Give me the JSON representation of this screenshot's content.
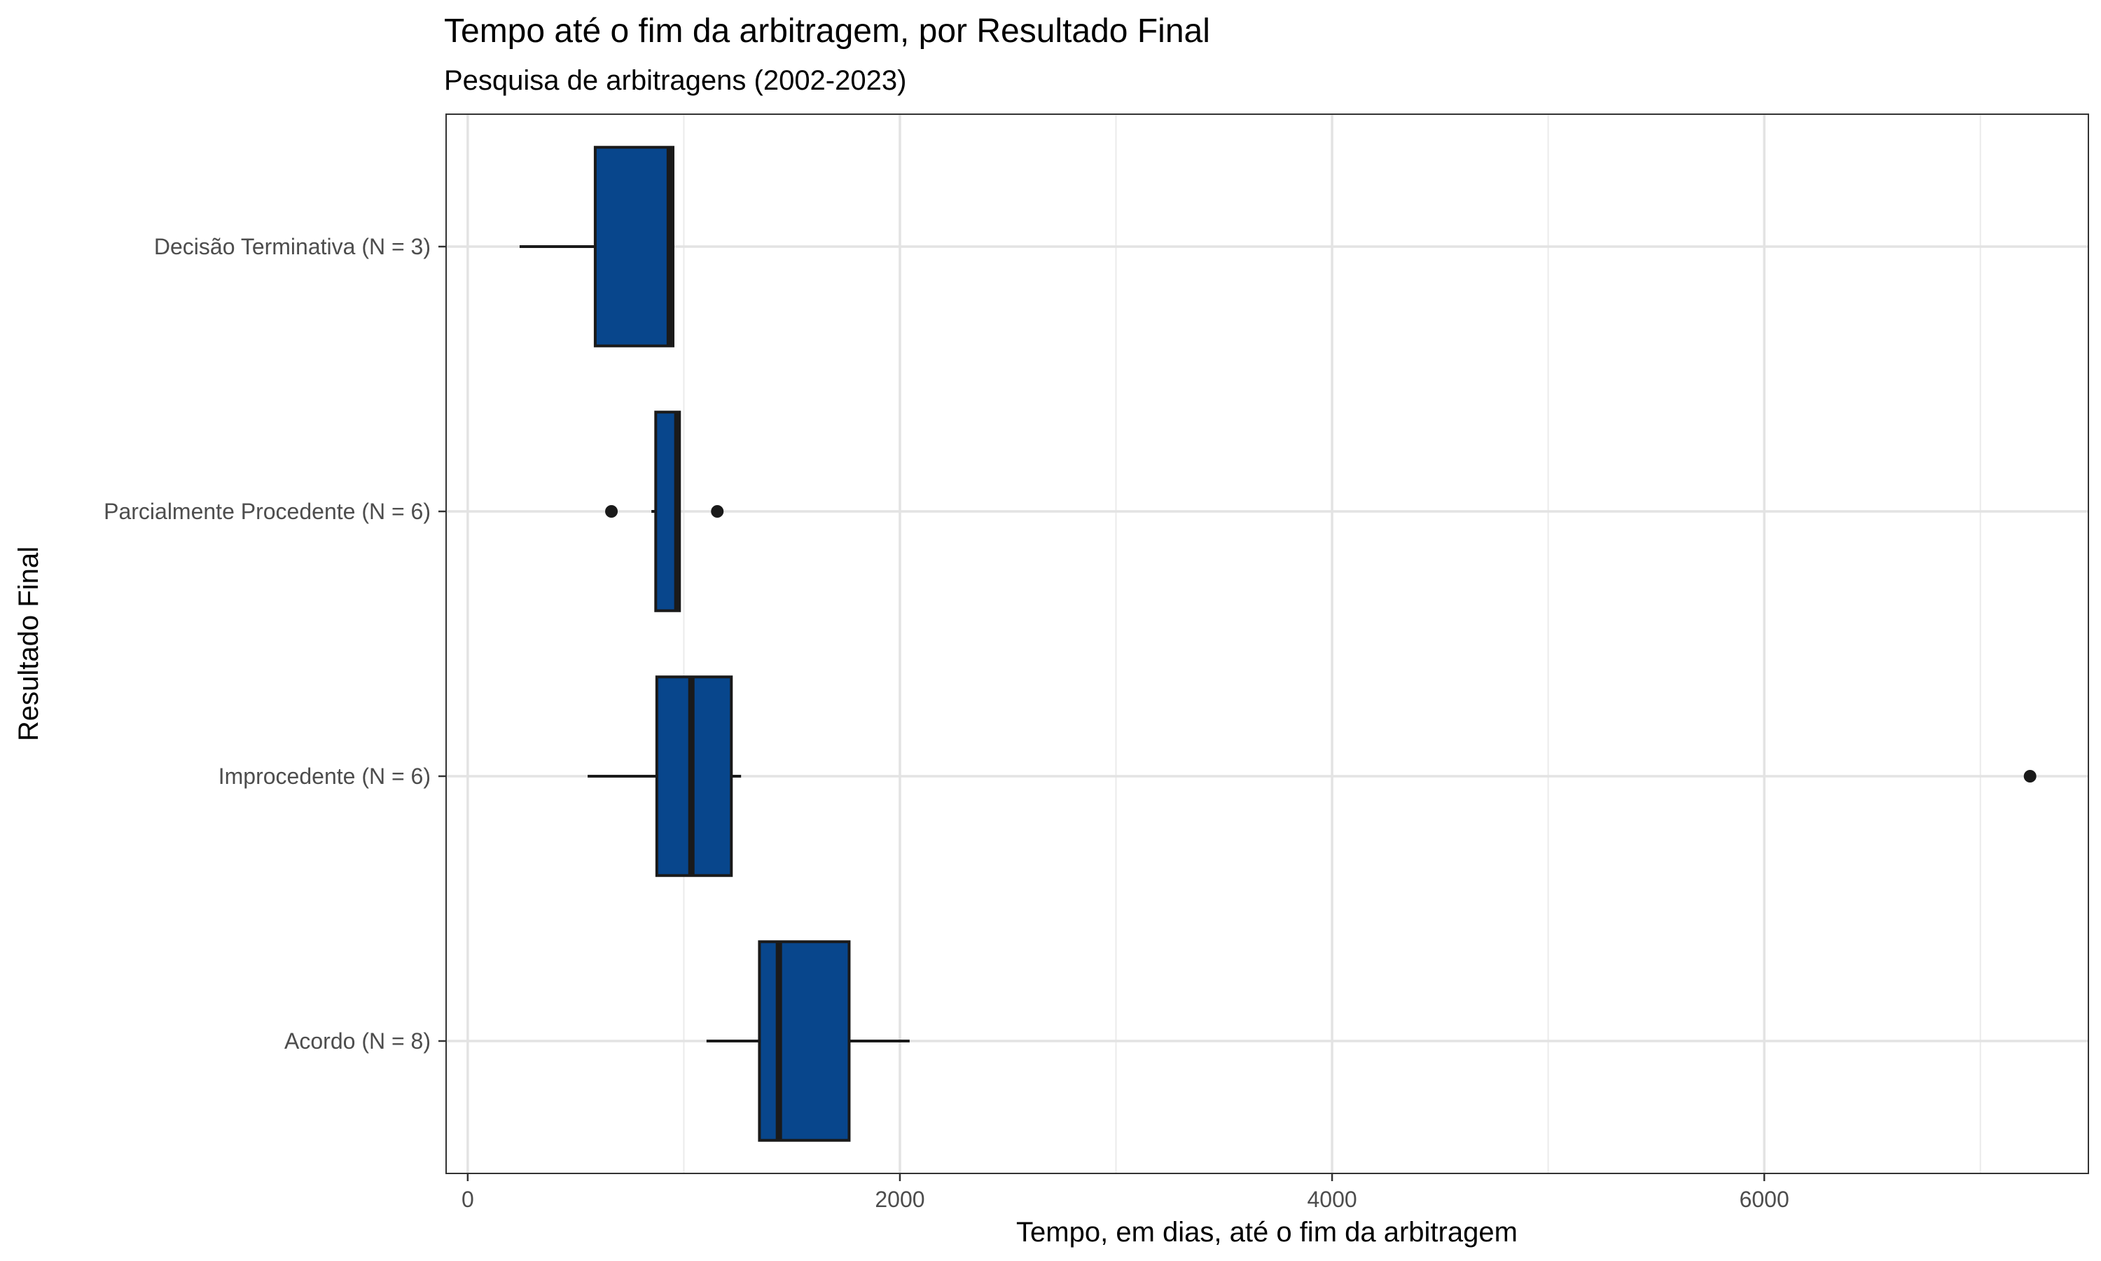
{
  "chart_data": {
    "type": "boxplot",
    "orientation": "horizontal",
    "title": "Tempo até o fim da arbitragem, por Resultado Final",
    "subtitle": "Pesquisa de arbitragens (2002-2023)",
    "xlabel": "Tempo, em dias, até o fim da arbitragem",
    "ylabel": "Resultado Final",
    "xlim": [
      -100,
      7500
    ],
    "xticks": [
      0,
      2000,
      4000,
      6000
    ],
    "xtick_labels": [
      "0",
      "2000",
      "4000",
      "6000"
    ],
    "grid": true,
    "fill_color": "#08468C",
    "line_color": "#1a1a1a",
    "categories": [
      {
        "label": "Decisão Terminativa (N = 3)",
        "whisker_low": 240,
        "q1": 590,
        "median": 935,
        "q3": 950,
        "whisker_high": 950,
        "outliers": []
      },
      {
        "label": "Parcialmente Procedente (N = 6)",
        "whisker_low": 850,
        "q1": 870,
        "median": 970,
        "q3": 980,
        "whisker_high": 980,
        "outliers": [
          665,
          1155
        ]
      },
      {
        "label": "Improcedente (N = 6)",
        "whisker_low": 555,
        "q1": 875,
        "median": 1035,
        "q3": 1220,
        "whisker_high": 1265,
        "outliers": [
          7230
        ]
      },
      {
        "label": "Acordo (N = 8)",
        "whisker_low": 1105,
        "q1": 1350,
        "median": 1440,
        "q3": 1765,
        "whisker_high": 2045,
        "outliers": []
      }
    ]
  }
}
